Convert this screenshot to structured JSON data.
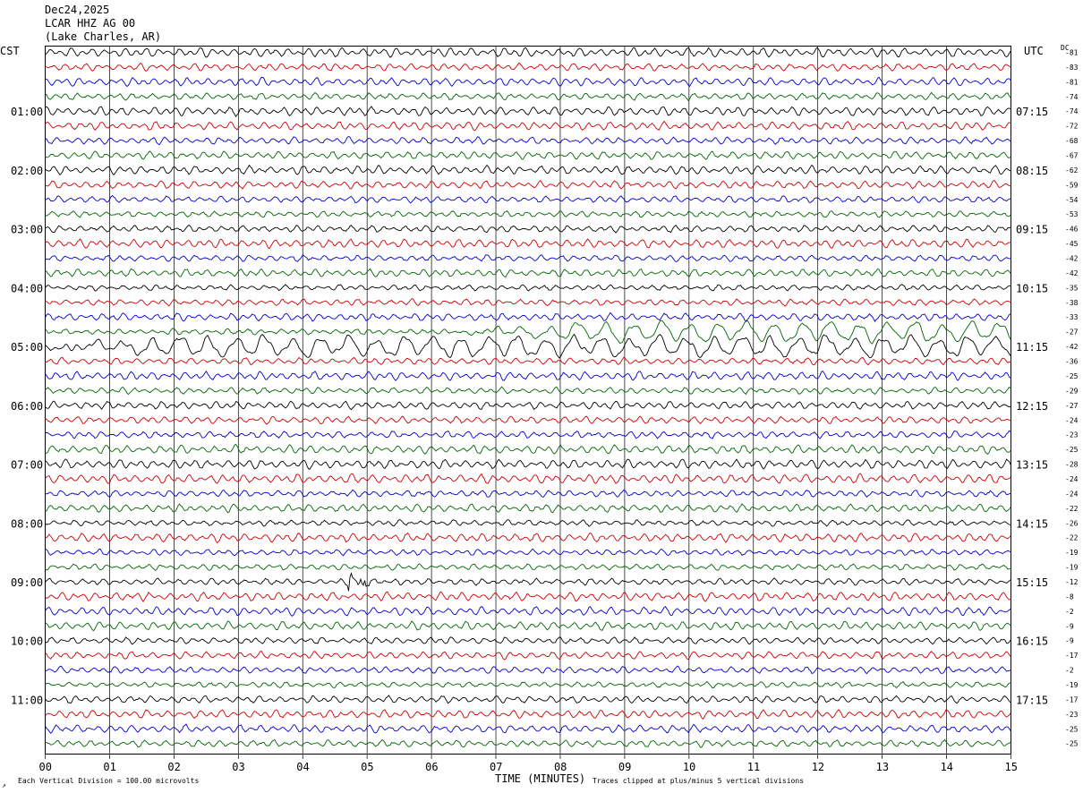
{
  "header": {
    "date": "Dec24,2025",
    "station": "LCAR HHZ AG 00",
    "location": "(Lake Charles, AR)"
  },
  "axes": {
    "left_tz": "CST",
    "right_tz": "UTC",
    "dc_label": "DC",
    "x_title": "TIME (MINUTES)",
    "scale_note": "Each Vertical Division =  100.00 microvolts",
    "clip_note": "Traces clipped at plus/minus 5 vertical divisions",
    "corner_mark": "↗"
  },
  "chart_data": {
    "type": "line",
    "title": "",
    "xlabel": "TIME (MINUTES)",
    "xlim": [
      0,
      15
    ],
    "x_ticks": [
      "00",
      "01",
      "02",
      "03",
      "04",
      "05",
      "06",
      "07",
      "08",
      "09",
      "10",
      "11",
      "12",
      "13",
      "14",
      "15"
    ],
    "trace_colors": [
      "#000000",
      "#cc0000",
      "#0000cc",
      "#006600"
    ],
    "grid": "vertical lines at each minute",
    "left_hour_labels": [
      "01:00",
      "02:00",
      "03:00",
      "04:00",
      "05:00",
      "06:00",
      "07:00",
      "08:00",
      "09:00",
      "10:00",
      "11:00"
    ],
    "right_hour_labels": [
      "07:15",
      "08:15",
      "09:15",
      "10:15",
      "11:15",
      "12:15",
      "13:15",
      "14:15",
      "15:15",
      "16:15",
      "17:15"
    ],
    "dc_offsets": [
      -81,
      -83,
      -81,
      -74,
      -74,
      -72,
      -68,
      -67,
      -62,
      -59,
      -54,
      -53,
      -46,
      -45,
      -42,
      -42,
      -35,
      -38,
      -33,
      -27,
      -42,
      -36,
      -25,
      -29,
      -27,
      -24,
      -23,
      -25,
      -28,
      -24,
      -24,
      -22,
      -26,
      -22,
      -19,
      -19,
      -12,
      -8,
      -2,
      -9,
      -9,
      -17,
      -2,
      -19,
      -17,
      -23,
      -25,
      -25
    ],
    "trace_count": 48,
    "events": [
      {
        "trace_index": 19,
        "from_minute": 6.5,
        "to_minute": 15,
        "description": "large long-period oscillation"
      },
      {
        "trace_index": 20,
        "from_minute": 0,
        "to_minute": 15,
        "description": "large long-period oscillation"
      },
      {
        "trace_index": 36,
        "from_minute": 4.7,
        "to_minute": 5.2,
        "description": "local event burst"
      }
    ]
  }
}
